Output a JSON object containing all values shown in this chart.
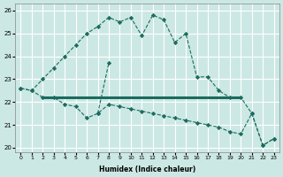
{
  "xlabel": "Humidex (Indice chaleur)",
  "bg_color": "#cce8e4",
  "grid_color": "#ffffff",
  "line_color": "#1a6b5e",
  "xlim": [
    -0.5,
    23.5
  ],
  "ylim": [
    19.8,
    26.3
  ],
  "yticks": [
    20,
    21,
    22,
    23,
    24,
    25,
    26
  ],
  "xticks": [
    0,
    1,
    2,
    3,
    4,
    5,
    6,
    7,
    8,
    9,
    10,
    11,
    12,
    13,
    14,
    15,
    16,
    17,
    18,
    19,
    20,
    21,
    22,
    23
  ],
  "curve1_x": [
    0,
    1,
    2,
    3,
    4,
    5,
    6,
    7,
    8,
    9,
    10,
    11,
    12,
    13,
    14,
    15,
    16,
    17,
    18,
    19,
    20,
    21,
    22,
    23
  ],
  "curve1_y": [
    22.6,
    22.5,
    23.0,
    23.5,
    24.0,
    24.5,
    25.0,
    25.3,
    25.7,
    25.5,
    25.7,
    24.9,
    25.8,
    25.6,
    24.6,
    25.0,
    23.1,
    23.1,
    22.5,
    22.2,
    22.2,
    21.5,
    20.1,
    20.4
  ],
  "curve2_x": [
    2,
    3,
    4,
    5,
    6,
    7,
    8,
    9,
    10,
    11,
    12,
    13,
    14,
    15,
    16,
    17,
    18,
    19,
    20
  ],
  "curve2_y": [
    22.2,
    22.2,
    22.2,
    22.2,
    22.2,
    22.2,
    22.2,
    22.2,
    22.2,
    22.2,
    22.2,
    22.2,
    22.2,
    22.2,
    22.2,
    22.2,
    22.2,
    22.2,
    22.2
  ],
  "curve3_x": [
    0,
    1,
    2,
    3,
    4,
    5,
    6,
    7,
    8,
    9,
    10,
    11,
    12,
    13,
    14,
    15,
    16,
    17,
    18,
    19,
    20,
    21,
    22,
    23
  ],
  "curve3_y": [
    22.6,
    22.5,
    22.2,
    22.2,
    21.9,
    21.8,
    21.3,
    21.5,
    21.9,
    21.8,
    21.7,
    21.6,
    21.5,
    21.4,
    21.3,
    21.2,
    21.1,
    21.0,
    20.9,
    20.7,
    20.6,
    21.5,
    20.1,
    20.4
  ],
  "curve4_x": [
    7,
    8
  ],
  "curve4_y": [
    21.5,
    23.7
  ]
}
